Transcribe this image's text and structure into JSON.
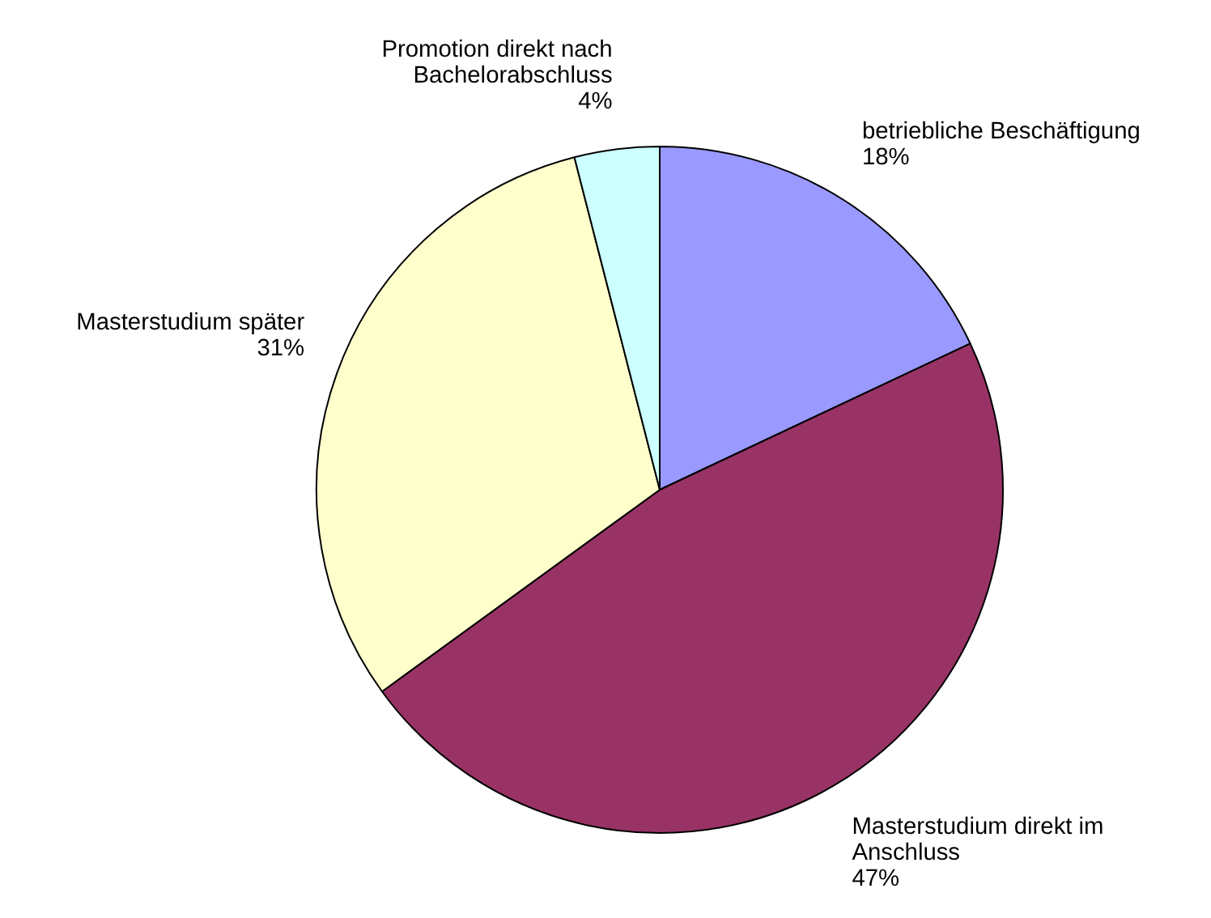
{
  "chart_data": {
    "type": "pie",
    "categories": [
      "betriebliche Beschäftigung",
      "Masterstudium direkt im Anschluss",
      "Masterstudium später",
      "Promotion direkt nach Bachelorabschluss"
    ],
    "values": [
      18,
      47,
      31,
      4
    ],
    "colors": [
      "#9999ff",
      "#993366",
      "#ffffcc",
      "#ccffff"
    ],
    "value_labels": [
      "18%",
      "47%",
      "31%",
      "4%"
    ]
  }
}
